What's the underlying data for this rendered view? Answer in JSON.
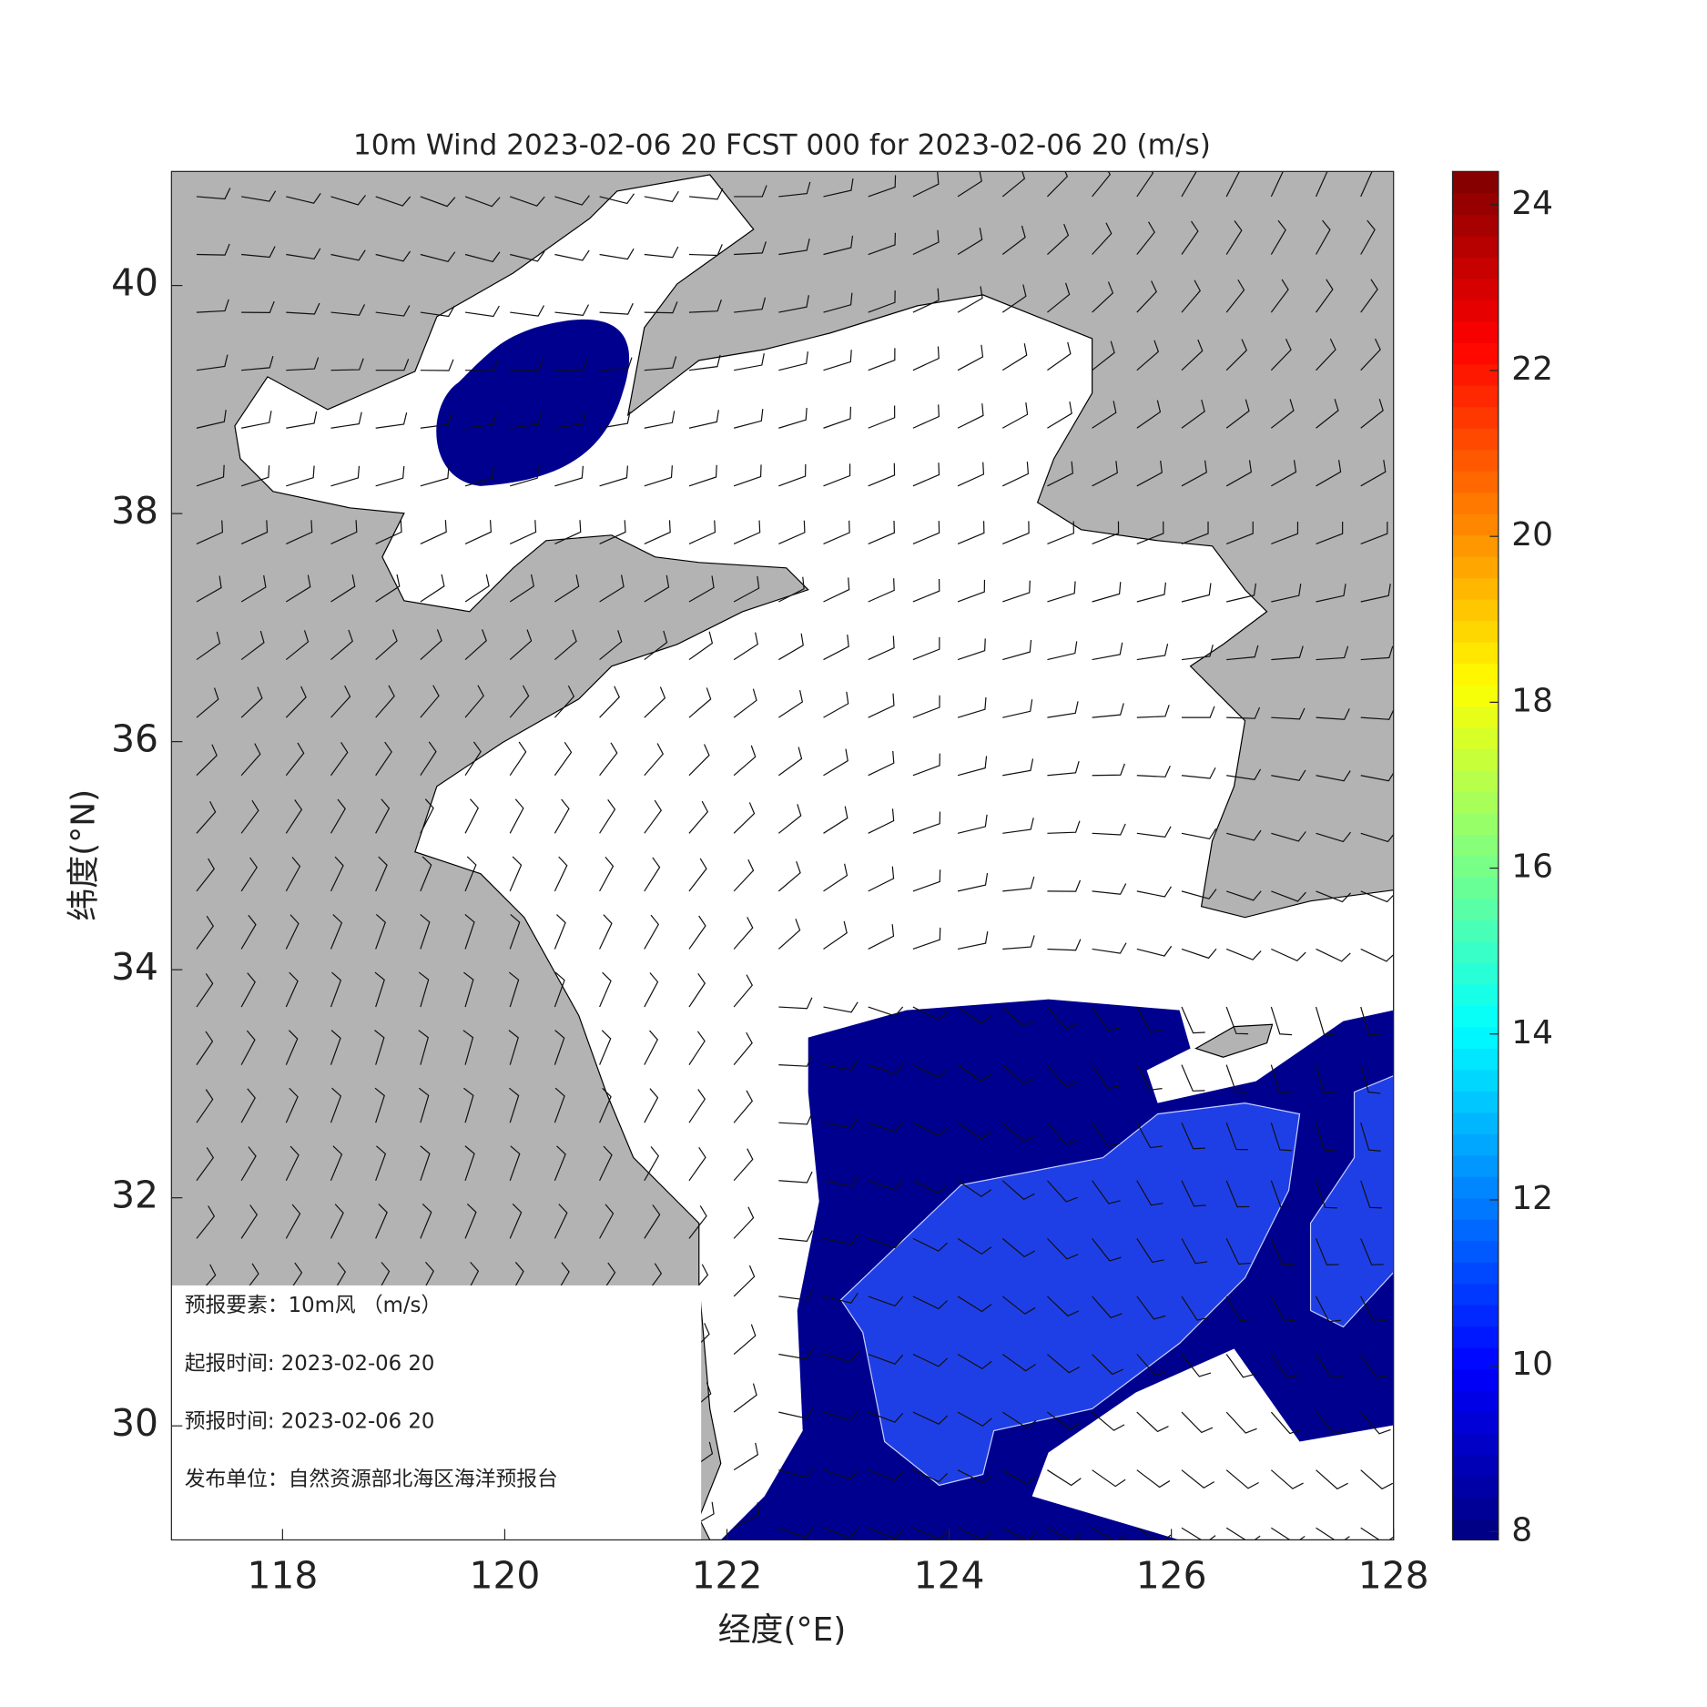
{
  "chart_data": {
    "type": "map",
    "title": "10m Wind 2023-02-06 20 FCST 000 for 2023-02-06 20 (m/s)",
    "xlabel": "经度(°E)",
    "ylabel": "纬度(°N)",
    "xlim": [
      117,
      128
    ],
    "xticks": [
      118,
      120,
      122,
      124,
      126,
      128
    ],
    "ylim": [
      29,
      41
    ],
    "yticks": [
      30,
      32,
      34,
      36,
      38,
      40
    ],
    "colorbar": {
      "lim": [
        7.9,
        24.4
      ],
      "ticks": [
        8,
        10,
        12,
        14,
        16,
        18,
        20,
        22,
        24
      ]
    },
    "info": [
      "预报要素：10m风 （m/s）",
      "起报时间: 2023-02-06 20",
      "预报时间: 2023-02-06 20",
      "发布单位：自然资源部北海区海洋预报台"
    ]
  }
}
